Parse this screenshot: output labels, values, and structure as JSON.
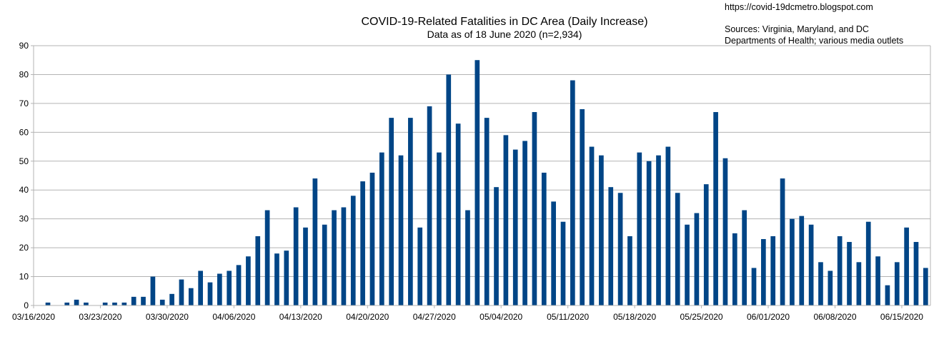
{
  "chart_data": {
    "type": "bar",
    "title": "COVID-19-Related Fatalities in DC Area (Daily Increase)",
    "subtitle": "Data as of 18 June 2020 (n=2,934)",
    "xlabel": "",
    "ylabel": "",
    "ylim": [
      0,
      90
    ],
    "yticks": [
      0,
      10,
      20,
      30,
      40,
      50,
      60,
      70,
      80,
      90
    ],
    "grid": true,
    "bar_color": "#004586",
    "start_date": "03/16/2020",
    "xtick_labels": [
      "03/16/2020",
      "03/23/2020",
      "03/30/2020",
      "04/06/2020",
      "04/13/2020",
      "04/20/2020",
      "04/27/2020",
      "05/04/2020",
      "05/11/2020",
      "05/18/2020",
      "05/25/2020",
      "06/01/2020",
      "06/08/2020",
      "06/15/2020"
    ],
    "values": [
      0,
      1,
      0,
      1,
      2,
      1,
      0,
      1,
      1,
      1,
      3,
      3,
      10,
      2,
      4,
      9,
      6,
      12,
      8,
      11,
      12,
      14,
      17,
      24,
      33,
      18,
      19,
      34,
      27,
      44,
      28,
      33,
      34,
      38,
      43,
      46,
      53,
      65,
      52,
      65,
      27,
      69,
      53,
      80,
      63,
      33,
      85,
      65,
      41,
      59,
      54,
      57,
      67,
      46,
      36,
      29,
      78,
      68,
      55,
      52,
      41,
      39,
      24,
      53,
      50,
      52,
      55,
      39,
      28,
      32,
      42,
      67,
      51,
      25,
      33,
      13,
      23,
      24,
      44,
      30,
      31,
      28,
      15,
      12,
      24,
      22,
      15,
      29,
      17,
      7,
      15,
      27,
      22,
      13
    ]
  },
  "annotations": {
    "url": "https://covid-19dcmetro.blogspot.com",
    "sources_line1": "Sources: Virginia, Maryland, and DC",
    "sources_line2": "Departments of Health; various media outlets"
  }
}
